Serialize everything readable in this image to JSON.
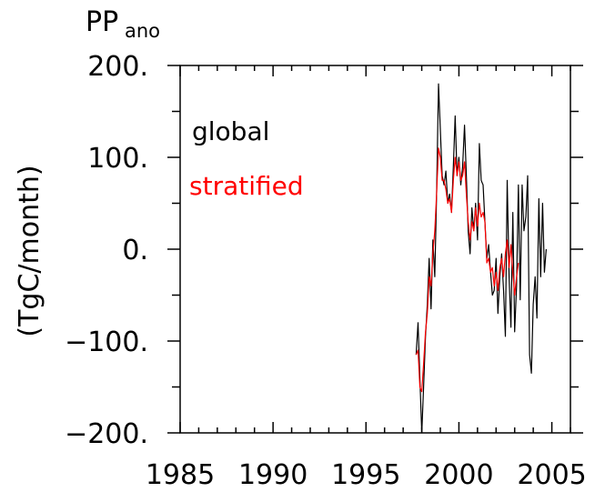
{
  "chart_data": {
    "type": "line",
    "title_main": "PP",
    "title_sub": "ano",
    "xlabel": "",
    "ylabel": "(TgC/month)",
    "xlim": [
      1985,
      2006
    ],
    "ylim": [
      -200,
      200
    ],
    "x_ticks": [
      "1985",
      "1990",
      "1995",
      "2000",
      "2005"
    ],
    "y_ticks": [
      "200.",
      "100.",
      "0.",
      "−100.",
      "−200."
    ],
    "grid": false,
    "legend_placement": "top-left",
    "series": [
      {
        "name": "global",
        "color": "#000000",
        "points": [
          [
            1997.7,
            -115
          ],
          [
            1997.8,
            -80
          ],
          [
            1997.9,
            -140
          ],
          [
            1998.0,
            -200
          ],
          [
            1998.1,
            -150
          ],
          [
            1998.2,
            -95
          ],
          [
            1998.3,
            -60
          ],
          [
            1998.4,
            -10
          ],
          [
            1998.5,
            -65
          ],
          [
            1998.6,
            10
          ],
          [
            1998.7,
            -30
          ],
          [
            1998.8,
            60
          ],
          [
            1998.9,
            180
          ],
          [
            1999.0,
            130
          ],
          [
            1999.1,
            80
          ],
          [
            1999.2,
            70
          ],
          [
            1999.3,
            85
          ],
          [
            1999.4,
            50
          ],
          [
            1999.5,
            60
          ],
          [
            1999.6,
            40
          ],
          [
            1999.7,
            90
          ],
          [
            1999.8,
            145
          ],
          [
            1999.9,
            80
          ],
          [
            2000.0,
            100
          ],
          [
            2000.1,
            70
          ],
          [
            2000.2,
            90
          ],
          [
            2000.3,
            135
          ],
          [
            2000.4,
            80
          ],
          [
            2000.5,
            20
          ],
          [
            2000.6,
            -5
          ],
          [
            2000.7,
            45
          ],
          [
            2000.8,
            20
          ],
          [
            2000.9,
            50
          ],
          [
            2001.0,
            10
          ],
          [
            2001.1,
            115
          ],
          [
            2001.2,
            75
          ],
          [
            2001.3,
            70
          ],
          [
            2001.4,
            30
          ],
          [
            2001.5,
            -10
          ],
          [
            2001.6,
            5
          ],
          [
            2001.7,
            -25
          ],
          [
            2001.8,
            -50
          ],
          [
            2001.9,
            -45
          ],
          [
            2002.0,
            -10
          ],
          [
            2002.1,
            -70
          ],
          [
            2002.2,
            -30
          ],
          [
            2002.3,
            -5
          ],
          [
            2002.4,
            -45
          ],
          [
            2002.5,
            -95
          ],
          [
            2002.6,
            75
          ],
          [
            2002.7,
            -30
          ],
          [
            2002.8,
            -85
          ],
          [
            2002.9,
            40
          ],
          [
            2003.0,
            -90
          ],
          [
            2003.1,
            -40
          ],
          [
            2003.2,
            70
          ],
          [
            2003.3,
            -55
          ],
          [
            2003.4,
            70
          ],
          [
            2003.5,
            20
          ],
          [
            2003.6,
            35
          ],
          [
            2003.7,
            80
          ],
          [
            2003.8,
            -115
          ],
          [
            2003.9,
            -135
          ],
          [
            2004.0,
            -60
          ],
          [
            2004.1,
            -30
          ],
          [
            2004.2,
            -75
          ],
          [
            2004.3,
            55
          ],
          [
            2004.4,
            -30
          ],
          [
            2004.5,
            50
          ],
          [
            2004.6,
            -25
          ],
          [
            2004.7,
            0
          ]
        ]
      },
      {
        "name": "stratified",
        "color": "#ff0000",
        "points": [
          [
            1997.7,
            -115
          ],
          [
            1997.8,
            -110
          ],
          [
            1997.9,
            -150
          ],
          [
            1998.0,
            -155
          ],
          [
            1998.1,
            -125
          ],
          [
            1998.2,
            -90
          ],
          [
            1998.3,
            -70
          ],
          [
            1998.4,
            -30
          ],
          [
            1998.5,
            -40
          ],
          [
            1998.6,
            -5
          ],
          [
            1998.7,
            20
          ],
          [
            1998.8,
            60
          ],
          [
            1998.9,
            110
          ],
          [
            1999.0,
            100
          ],
          [
            1999.1,
            75
          ],
          [
            1999.2,
            75
          ],
          [
            1999.3,
            65
          ],
          [
            1999.4,
            50
          ],
          [
            1999.5,
            55
          ],
          [
            1999.6,
            40
          ],
          [
            1999.7,
            75
          ],
          [
            1999.8,
            100
          ],
          [
            1999.9,
            80
          ],
          [
            2000.0,
            95
          ],
          [
            2000.1,
            75
          ],
          [
            2000.2,
            80
          ],
          [
            2000.3,
            95
          ],
          [
            2000.4,
            60
          ],
          [
            2000.5,
            30
          ],
          [
            2000.6,
            10
          ],
          [
            2000.7,
            30
          ],
          [
            2000.8,
            20
          ],
          [
            2000.9,
            45
          ],
          [
            2001.0,
            25
          ],
          [
            2001.1,
            50
          ],
          [
            2001.2,
            35
          ],
          [
            2001.3,
            40
          ],
          [
            2001.4,
            30
          ],
          [
            2001.5,
            -15
          ],
          [
            2001.6,
            -10
          ],
          [
            2001.7,
            -25
          ],
          [
            2001.8,
            -20
          ],
          [
            2001.9,
            -40
          ],
          [
            2002.0,
            -25
          ],
          [
            2002.1,
            -45
          ],
          [
            2002.2,
            -20
          ],
          [
            2002.3,
            -10
          ],
          [
            2002.4,
            -30
          ],
          [
            2002.5,
            -5
          ],
          [
            2002.6,
            10
          ],
          [
            2002.7,
            -20
          ],
          [
            2002.8,
            5
          ],
          [
            2002.9,
            -25
          ],
          [
            2003.0,
            -50
          ],
          [
            2003.1,
            -30
          ],
          [
            2003.2,
            -15
          ]
        ]
      }
    ]
  }
}
